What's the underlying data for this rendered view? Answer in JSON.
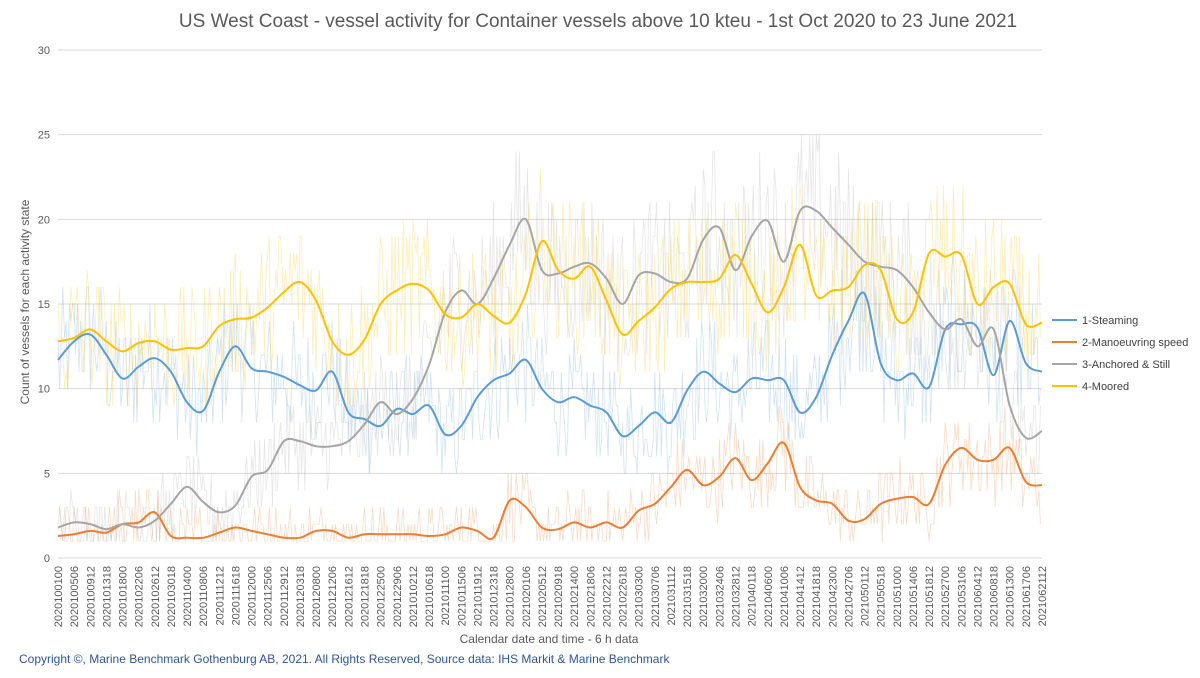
{
  "chart_data": {
    "type": "line",
    "title": "US West Coast - vessel activity for Container vessels above 10 kteu - 1st Oct 2020 to 23 June 2021",
    "xlabel": "Calendar date and time - 6 h data",
    "ylabel": "Count of vessels for each activity state",
    "ylim": [
      0,
      30
    ],
    "yticks": [
      0,
      5,
      10,
      15,
      20,
      25,
      30
    ],
    "grid": true,
    "legend_position": "right",
    "categories": [
      "2020100100",
      "2020100506",
      "2020100912",
      "2020101318",
      "2020101800",
      "2020102206",
      "2020102612",
      "2020103018",
      "2020110400",
      "2020110806",
      "2020111212",
      "2020111618",
      "2020112000",
      "2020112506",
      "2020112912",
      "2020120318",
      "2020120800",
      "2020121206",
      "2020121612",
      "2020121818",
      "2020122500",
      "2020122906",
      "2021010212",
      "2021010618",
      "2021011100",
      "2021011506",
      "2021011912",
      "2021012318",
      "2021012800",
      "2021020106",
      "2021020512",
      "2021020918",
      "2021021400",
      "2021021806",
      "2021022212",
      "2021022618",
      "2021030300",
      "2021030706",
      "2021031112",
      "2021031518",
      "2021032000",
      "2021032406",
      "2021032812",
      "2021040118",
      "2021040600",
      "2021041006",
      "2021041412",
      "2021041818",
      "2021042300",
      "2021042706",
      "2021050112",
      "2021050518",
      "2021051000",
      "2021051406",
      "2021051812",
      "2021052700",
      "2021053106",
      "2021060412",
      "2021060818",
      "2021061300",
      "2021061706",
      "2021062112"
    ],
    "series": [
      {
        "name": "1-Steaming",
        "color": "#5b9bd5",
        "values": [
          11.7,
          12.8,
          13.2,
          12.0,
          10.6,
          11.3,
          11.8,
          11.0,
          9.2,
          8.7,
          11.0,
          12.5,
          11.2,
          11.0,
          10.7,
          10.2,
          9.9,
          11.0,
          8.6,
          8.2,
          7.8,
          8.8,
          8.5,
          9.0,
          7.3,
          7.8,
          9.5,
          10.5,
          10.9,
          11.7,
          10.0,
          9.2,
          9.5,
          9.0,
          8.6,
          7.2,
          7.8,
          8.6,
          8.0,
          9.9,
          11.0,
          10.3,
          9.8,
          10.6,
          10.5,
          10.5,
          8.6,
          9.5,
          12.0,
          14.0,
          15.6,
          11.5,
          10.5,
          10.9,
          10.1,
          13.5,
          13.8,
          13.6,
          10.8,
          14.0,
          11.5,
          11.0
        ]
      },
      {
        "name": "2-Manoeuvring speed",
        "color": "#ed7d31",
        "values": [
          1.3,
          1.4,
          1.6,
          1.5,
          2.0,
          2.1,
          2.7,
          1.3,
          1.2,
          1.2,
          1.5,
          1.8,
          1.6,
          1.4,
          1.2,
          1.2,
          1.6,
          1.6,
          1.2,
          1.4,
          1.4,
          1.4,
          1.4,
          1.3,
          1.4,
          1.8,
          1.6,
          1.2,
          3.4,
          3.0,
          1.8,
          1.7,
          2.1,
          1.8,
          2.1,
          1.8,
          2.8,
          3.2,
          4.2,
          5.2,
          4.3,
          4.8,
          5.9,
          4.6,
          5.6,
          6.8,
          4.2,
          3.4,
          3.2,
          2.2,
          2.3,
          3.2,
          3.5,
          3.6,
          3.2,
          5.5,
          6.5,
          5.8,
          5.8,
          6.5,
          4.5,
          4.3
        ]
      },
      {
        "name": "3-Anchored & Still",
        "color": "#a5a5a5",
        "values": [
          1.8,
          2.1,
          2.0,
          1.7,
          2.0,
          1.8,
          2.2,
          3.2,
          4.2,
          3.3,
          2.7,
          3.1,
          4.8,
          5.2,
          6.9,
          6.9,
          6.6,
          6.6,
          6.9,
          7.9,
          9.2,
          8.5,
          9.4,
          11.4,
          14.5,
          15.8,
          15.0,
          16.5,
          18.5,
          20.0,
          17.0,
          16.8,
          17.2,
          17.4,
          16.5,
          15.0,
          16.7,
          16.8,
          16.3,
          16.5,
          18.8,
          19.5,
          17.0,
          19.0,
          19.9,
          17.5,
          20.5,
          20.5,
          19.5,
          18.5,
          17.5,
          17.2,
          17.0,
          16.0,
          14.5,
          13.5,
          14.1,
          12.5,
          13.5,
          9.0,
          7.1,
          7.5
        ]
      },
      {
        "name": "4-Moored",
        "color": "#ffc000",
        "values": [
          12.8,
          13.0,
          13.5,
          12.8,
          12.2,
          12.7,
          12.8,
          12.3,
          12.4,
          12.5,
          13.7,
          14.1,
          14.2,
          14.8,
          15.7,
          16.3,
          15.2,
          12.8,
          12.0,
          12.9,
          15.0,
          15.8,
          16.2,
          15.8,
          14.4,
          14.2,
          15.0,
          14.3,
          13.9,
          15.6,
          18.7,
          17.0,
          16.5,
          17.2,
          15.2,
          13.2,
          14.0,
          14.8,
          15.9,
          16.3,
          16.3,
          16.5,
          17.9,
          16.2,
          14.5,
          16.0,
          18.5,
          15.5,
          15.8,
          16.0,
          17.3,
          17.0,
          14.1,
          14.5,
          18.0,
          17.8,
          17.9,
          15.0,
          16.0,
          16.2,
          13.8,
          13.9
        ]
      }
    ]
  },
  "footer": {
    "copyright": "Copyright ©, Marine Benchmark Gothenburg AB, 2021. All Rights Reserved, Source data: IHS Markit & Marine Benchmark"
  }
}
